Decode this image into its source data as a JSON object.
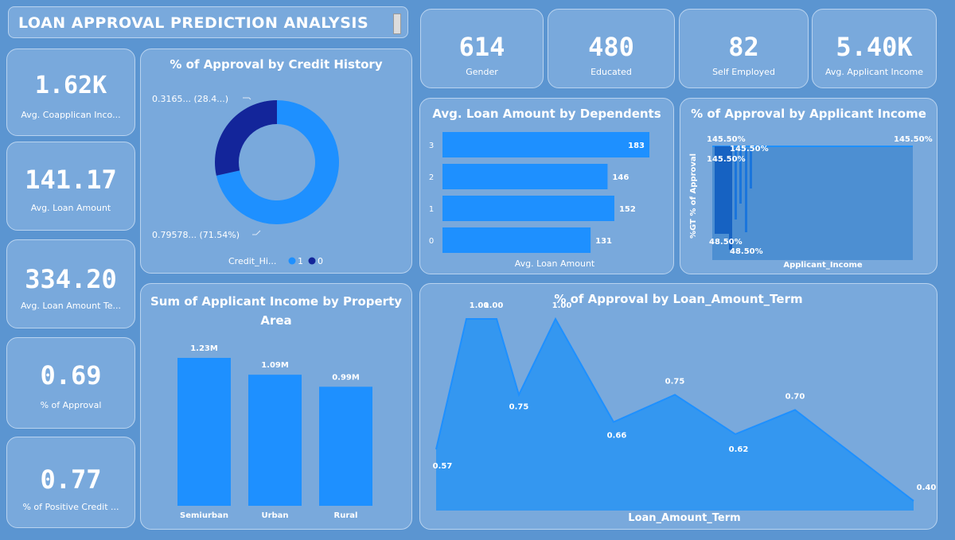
{
  "header": {
    "title": "LOAN APPROVAL PREDICTION ANALYSIS"
  },
  "kpis_left": [
    {
      "value": "1.62K",
      "label": "Avg. Coapplican Inco..."
    },
    {
      "value": "141.17",
      "label": "Avg. Loan Amount"
    },
    {
      "value": "334.20",
      "label": "Avg. Loan Amount Te..."
    },
    {
      "value": "0.69",
      "label": "% of Approval"
    },
    {
      "value": "0.77",
      "label": "% of Positive Credit ..."
    }
  ],
  "kpis_top": [
    {
      "value": "614",
      "label": "Gender"
    },
    {
      "value": "480",
      "label": "Educated"
    },
    {
      "value": "82",
      "label": "Self Employed"
    },
    {
      "value": "5.40K",
      "label": "Avg. Applicant Income"
    }
  ],
  "colors": {
    "primary": "#1e90ff",
    "dark": "#13259a",
    "card": "#79a9dc",
    "background": "#5b95d1"
  },
  "chart_data": [
    {
      "id": "credit_history",
      "type": "pie",
      "title": "% of Approval by Credit History",
      "labels": [
        "0.79578... (71.54%)",
        "0.3165... (28.4...)"
      ],
      "values": [
        71.54,
        28.46
      ],
      "legend": {
        "title": "Credit_Hi...",
        "entries": [
          "1",
          "0"
        ],
        "placement": "bottom"
      }
    },
    {
      "id": "dependents",
      "type": "bar",
      "title": "Avg. Loan Amount by Dependents",
      "categories": [
        "3",
        "2",
        "1",
        "0"
      ],
      "values": [
        183,
        146,
        152,
        131
      ],
      "xlabel": "Avg. Loan Amount",
      "orientation": "horizontal"
    },
    {
      "id": "applicant_income",
      "type": "area",
      "title": "% of Approval by Applicant Income",
      "xlabel": "Applicant_Income",
      "ylabel": "%GT % of Approval",
      "labels": [
        "145.50%",
        "145.50%",
        "145.50%",
        "145.50%",
        "48.50%",
        "48.50%"
      ]
    },
    {
      "id": "property_area",
      "type": "bar",
      "title": "Sum of Applicant Income by Property Area",
      "categories": [
        "Semiurban",
        "Urban",
        "Rural"
      ],
      "values": [
        1.23,
        1.09,
        0.99
      ],
      "value_labels": [
        "1.23M",
        "1.09M",
        "0.99M"
      ]
    },
    {
      "id": "loan_term",
      "type": "area",
      "title": "% of Approval by Loan_Amount_Term",
      "xlabel": "Loan_Amount_Term",
      "values": [
        0.57,
        1.0,
        1.0,
        0.75,
        1.0,
        0.66,
        0.75,
        0.62,
        0.7,
        0.4
      ],
      "value_labels": [
        "0.57",
        "1.00",
        "1.00",
        "0.75",
        "1.00",
        "0.66",
        "0.75",
        "0.62",
        "0.70",
        "0.40"
      ]
    }
  ]
}
